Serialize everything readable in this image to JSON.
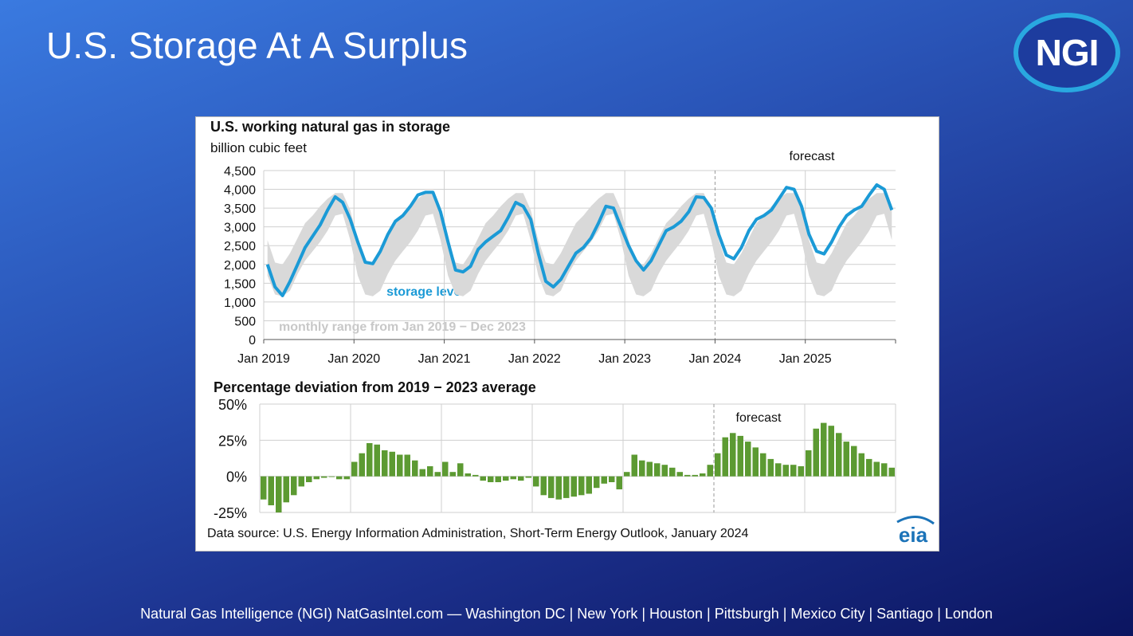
{
  "slide": {
    "title": "U.S. Storage At A Surplus",
    "logo_text": "NGI",
    "footer": "Natural Gas Intelligence (NGI) NatGasIntel.com — Washington DC | New York | Houston | Pittsburgh | Mexico City | Santiago | London"
  },
  "colors": {
    "storage_line": "#1b9ad6",
    "range_band": "#d9d9d9",
    "deviation_bars": "#5c9a32",
    "eia_logo": "#1b73b8"
  },
  "chart_data": [
    {
      "type": "line",
      "title": "U.S. working natural gas in storage",
      "subtitle": "billion cubic feet",
      "forecast_label": "forecast",
      "forecast_start": "Jan 2024",
      "x_tick_labels": [
        "Jan 2019",
        "Jan 2020",
        "Jan 2021",
        "Jan 2022",
        "Jan 2023",
        "Jan 2024",
        "Jan 2025"
      ],
      "y_tick_labels": [
        "0",
        "500",
        "1,000",
        "1,500",
        "2,000",
        "2,500",
        "3,000",
        "3,500",
        "4,000",
        "4,500"
      ],
      "ylim": [
        0,
        4500
      ],
      "grid": true,
      "series": [
        {
          "name": "storage level",
          "x": [
            "2019-01",
            "2019-02",
            "2019-03",
            "2019-04",
            "2019-05",
            "2019-06",
            "2019-07",
            "2019-08",
            "2019-09",
            "2019-10",
            "2019-11",
            "2019-12",
            "2020-01",
            "2020-02",
            "2020-03",
            "2020-04",
            "2020-05",
            "2020-06",
            "2020-07",
            "2020-08",
            "2020-09",
            "2020-10",
            "2020-11",
            "2020-12",
            "2021-01",
            "2021-02",
            "2021-03",
            "2021-04",
            "2021-05",
            "2021-06",
            "2021-07",
            "2021-08",
            "2021-09",
            "2021-10",
            "2021-11",
            "2021-12",
            "2022-01",
            "2022-02",
            "2022-03",
            "2022-04",
            "2022-05",
            "2022-06",
            "2022-07",
            "2022-08",
            "2022-09",
            "2022-10",
            "2022-11",
            "2022-12",
            "2023-01",
            "2023-02",
            "2023-03",
            "2023-04",
            "2023-05",
            "2023-06",
            "2023-07",
            "2023-08",
            "2023-09",
            "2023-10",
            "2023-11",
            "2023-12",
            "2024-01",
            "2024-02",
            "2024-03",
            "2024-04",
            "2024-05",
            "2024-06",
            "2024-07",
            "2024-08",
            "2024-09",
            "2024-10",
            "2024-11",
            "2024-12",
            "2025-01",
            "2025-02",
            "2025-03",
            "2025-04",
            "2025-05",
            "2025-06",
            "2025-07",
            "2025-08",
            "2025-09",
            "2025-10",
            "2025-11",
            "2025-12"
          ],
          "values": [
            2000,
            1400,
            1170,
            1550,
            2000,
            2450,
            2750,
            3050,
            3450,
            3800,
            3650,
            3200,
            2600,
            2060,
            2020,
            2350,
            2800,
            3150,
            3300,
            3550,
            3850,
            3920,
            3920,
            3400,
            2600,
            1850,
            1800,
            1950,
            2400,
            2600,
            2750,
            2900,
            3250,
            3650,
            3550,
            3200,
            2300,
            1550,
            1400,
            1600,
            1950,
            2300,
            2450,
            2700,
            3100,
            3550,
            3500,
            3000,
            2500,
            2100,
            1850,
            2100,
            2500,
            2900,
            3000,
            3150,
            3400,
            3800,
            3780,
            3500,
            2800,
            2250,
            2150,
            2450,
            2900,
            3200,
            3300,
            3450,
            3750,
            4050,
            4000,
            3550,
            2800,
            2350,
            2280,
            2600,
            3000,
            3300,
            3450,
            3550,
            3850,
            4120,
            4000,
            3450
          ]
        },
        {
          "name": "monthly range from Jan 2019 − Dec 2023",
          "low": [
            1700,
            1200,
            1150,
            1300,
            1750,
            2100,
            2350,
            2600,
            2900,
            3300,
            3350,
            2650,
            1700,
            1200,
            1150,
            1300,
            1750,
            2100,
            2350,
            2600,
            2900,
            3300,
            3350,
            2650,
            1700,
            1200,
            1150,
            1300,
            1750,
            2100,
            2350,
            2600,
            2900,
            3300,
            3350,
            2650,
            1700,
            1200,
            1150,
            1300,
            1750,
            2100,
            2350,
            2600,
            2900,
            3300,
            3350,
            2650,
            1700,
            1200,
            1150,
            1300,
            1750,
            2100,
            2350,
            2600,
            2900,
            3300,
            3350,
            2650,
            1700,
            1200,
            1150,
            1300,
            1750,
            2100,
            2350,
            2600,
            2900,
            3300,
            3350,
            2650,
            1700,
            1200,
            1150,
            1300,
            1750,
            2100,
            2350,
            2600,
            2900,
            3300,
            3350,
            2650
          ],
          "high": [
            2650,
            2050,
            2000,
            2300,
            2700,
            3100,
            3300,
            3550,
            3750,
            3900,
            3900,
            3450,
            2650,
            2050,
            2000,
            2300,
            2700,
            3100,
            3300,
            3550,
            3750,
            3900,
            3900,
            3450,
            2650,
            2050,
            2000,
            2300,
            2700,
            3100,
            3300,
            3550,
            3750,
            3900,
            3900,
            3450,
            2650,
            2050,
            2000,
            2300,
            2700,
            3100,
            3300,
            3550,
            3750,
            3900,
            3900,
            3450,
            2650,
            2050,
            2000,
            2300,
            2700,
            3100,
            3300,
            3550,
            3750,
            3900,
            3900,
            3450,
            2650,
            2050,
            2000,
            2300,
            2700,
            3100,
            3300,
            3550,
            3750,
            3900,
            3900,
            3450,
            2650,
            2050,
            2000,
            2300,
            2700,
            3100,
            3300,
            3550,
            3750,
            3900,
            3900,
            3450
          ]
        }
      ]
    },
    {
      "type": "bar",
      "title": "Percentage deviation from 2019 − 2023 average",
      "forecast_label": "forecast",
      "forecast_start": "Jan 2024",
      "y_tick_labels": [
        "50%",
        "25%",
        "0%",
        "-25%"
      ],
      "ylim": [
        -25,
        50
      ],
      "grid": true,
      "series": [
        {
          "name": "",
          "values": [
            -16,
            -20,
            -25,
            -18,
            -13,
            -7,
            -4,
            -2,
            -1,
            0,
            -2,
            -2,
            10,
            16,
            23,
            22,
            18,
            17,
            15,
            15,
            11,
            5,
            7,
            3,
            10,
            3,
            9,
            2,
            1,
            -3,
            -4,
            -4,
            -3,
            -2,
            -3,
            -1,
            -7,
            -13,
            -15,
            -16,
            -15,
            -14,
            -13,
            -12,
            -8,
            -5,
            -4,
            -9,
            3,
            15,
            11,
            10,
            9,
            8,
            6,
            3,
            1,
            1,
            2,
            8,
            16,
            27,
            30,
            28,
            24,
            20,
            16,
            12,
            9,
            8,
            8,
            7,
            18,
            33,
            37,
            35,
            30,
            24,
            21,
            16,
            12,
            10,
            9,
            6
          ]
        }
      ]
    }
  ],
  "source_note": "Data source: U.S. Energy Information Administration, Short-Term Energy Outlook, January 2024",
  "eia_logo_text": "eia"
}
